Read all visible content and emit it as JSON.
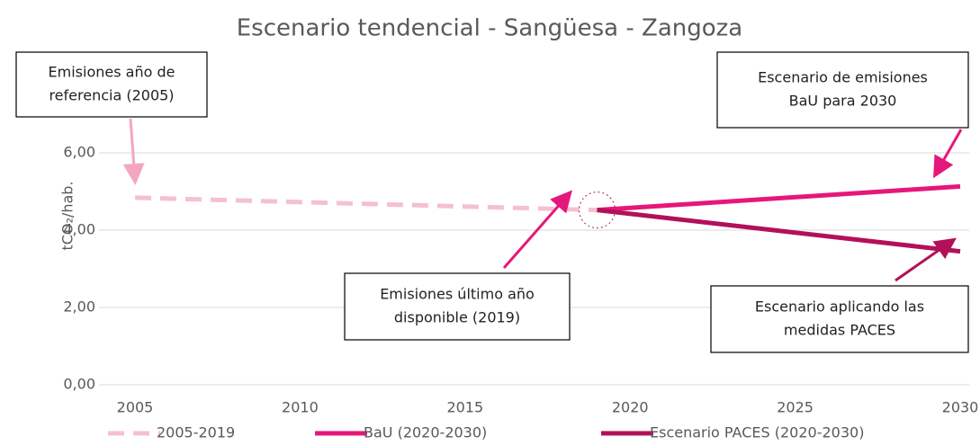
{
  "chart_data": {
    "type": "line",
    "title": "Escenario tendencial - Sangüesa - Zangoza",
    "y_label": "tCO₂/hab.",
    "series": [
      {
        "name": "2005-2019",
        "color": "#f4c1cf",
        "dashed": true,
        "x": [
          2005,
          2019
        ],
        "values": [
          4.84,
          4.52
        ]
      },
      {
        "name": "BaU (2020-2030)",
        "color": "#e6177a",
        "x": [
          2019,
          2030
        ],
        "values": [
          4.52,
          5.13
        ]
      },
      {
        "name": "Escenario PACES (2020-2030)",
        "color": "#b3105a",
        "x": [
          2019,
          2030
        ],
        "values": [
          4.52,
          3.45
        ]
      }
    ],
    "xlim": [
      2005,
      2030
    ],
    "xticks": [
      2005,
      2010,
      2015,
      2020,
      2025,
      2030
    ],
    "ylim": [
      0,
      8
    ],
    "yticks": [
      {
        "value": 0,
        "label": "0,00"
      },
      {
        "value": 2,
        "label": "2,00"
      },
      {
        "value": 4,
        "label": "4,00"
      },
      {
        "value": 6,
        "label": "6,00"
      }
    ],
    "grid": true,
    "legend": "bottom",
    "annotations": [
      {
        "lines": [
          "Emisiones año de",
          "referencia (2005)"
        ]
      },
      {
        "lines": [
          "Escenario de emisiones",
          "BaU para 2030"
        ]
      },
      {
        "lines": [
          "Emisiones último año",
          "disponible (2019)"
        ]
      },
      {
        "lines": [
          "Escenario aplicando las",
          "medidas PACES"
        ]
      }
    ]
  }
}
